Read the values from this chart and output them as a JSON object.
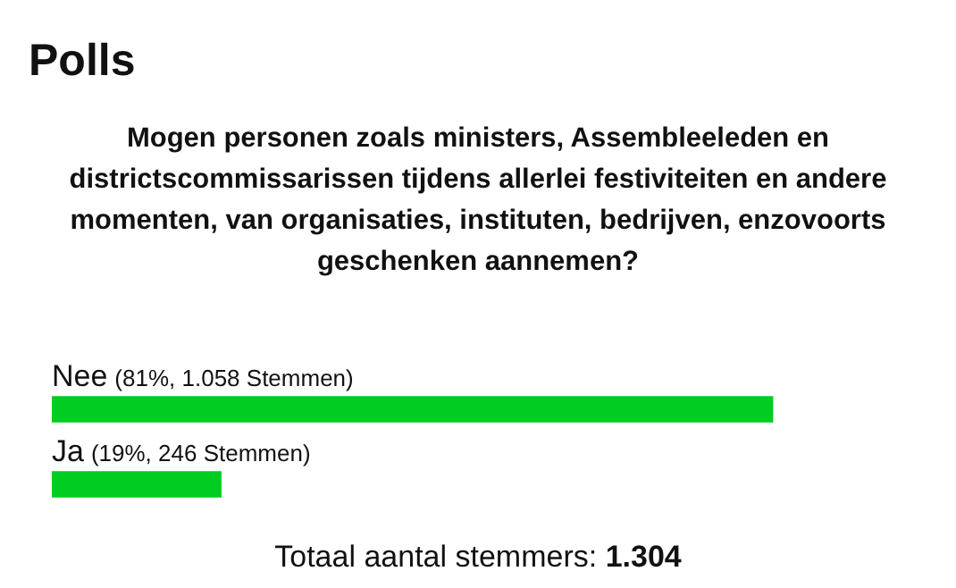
{
  "chart_data": {
    "type": "bar",
    "orientation": "horizontal",
    "title": "Polls",
    "subtitle": "Mogen personen zoals ministers, Assembleeleden en districtscommissarissen tijdens allerlei festiviteiten en andere momenten, van organisaties, instituten, bedrijven, enzovoorts geschenken aannemen?",
    "categories": [
      "Nee",
      "Ja"
    ],
    "values": [
      81,
      19
    ],
    "value_labels": [
      "(81%, 1.058 Stemmen)",
      "(19%, 246 Stemmen)"
    ],
    "color": "#00cc22",
    "tick_labels": false,
    "legend": false,
    "annotations": [
      "Totaal aantal stemmers: 1.304"
    ]
  }
}
